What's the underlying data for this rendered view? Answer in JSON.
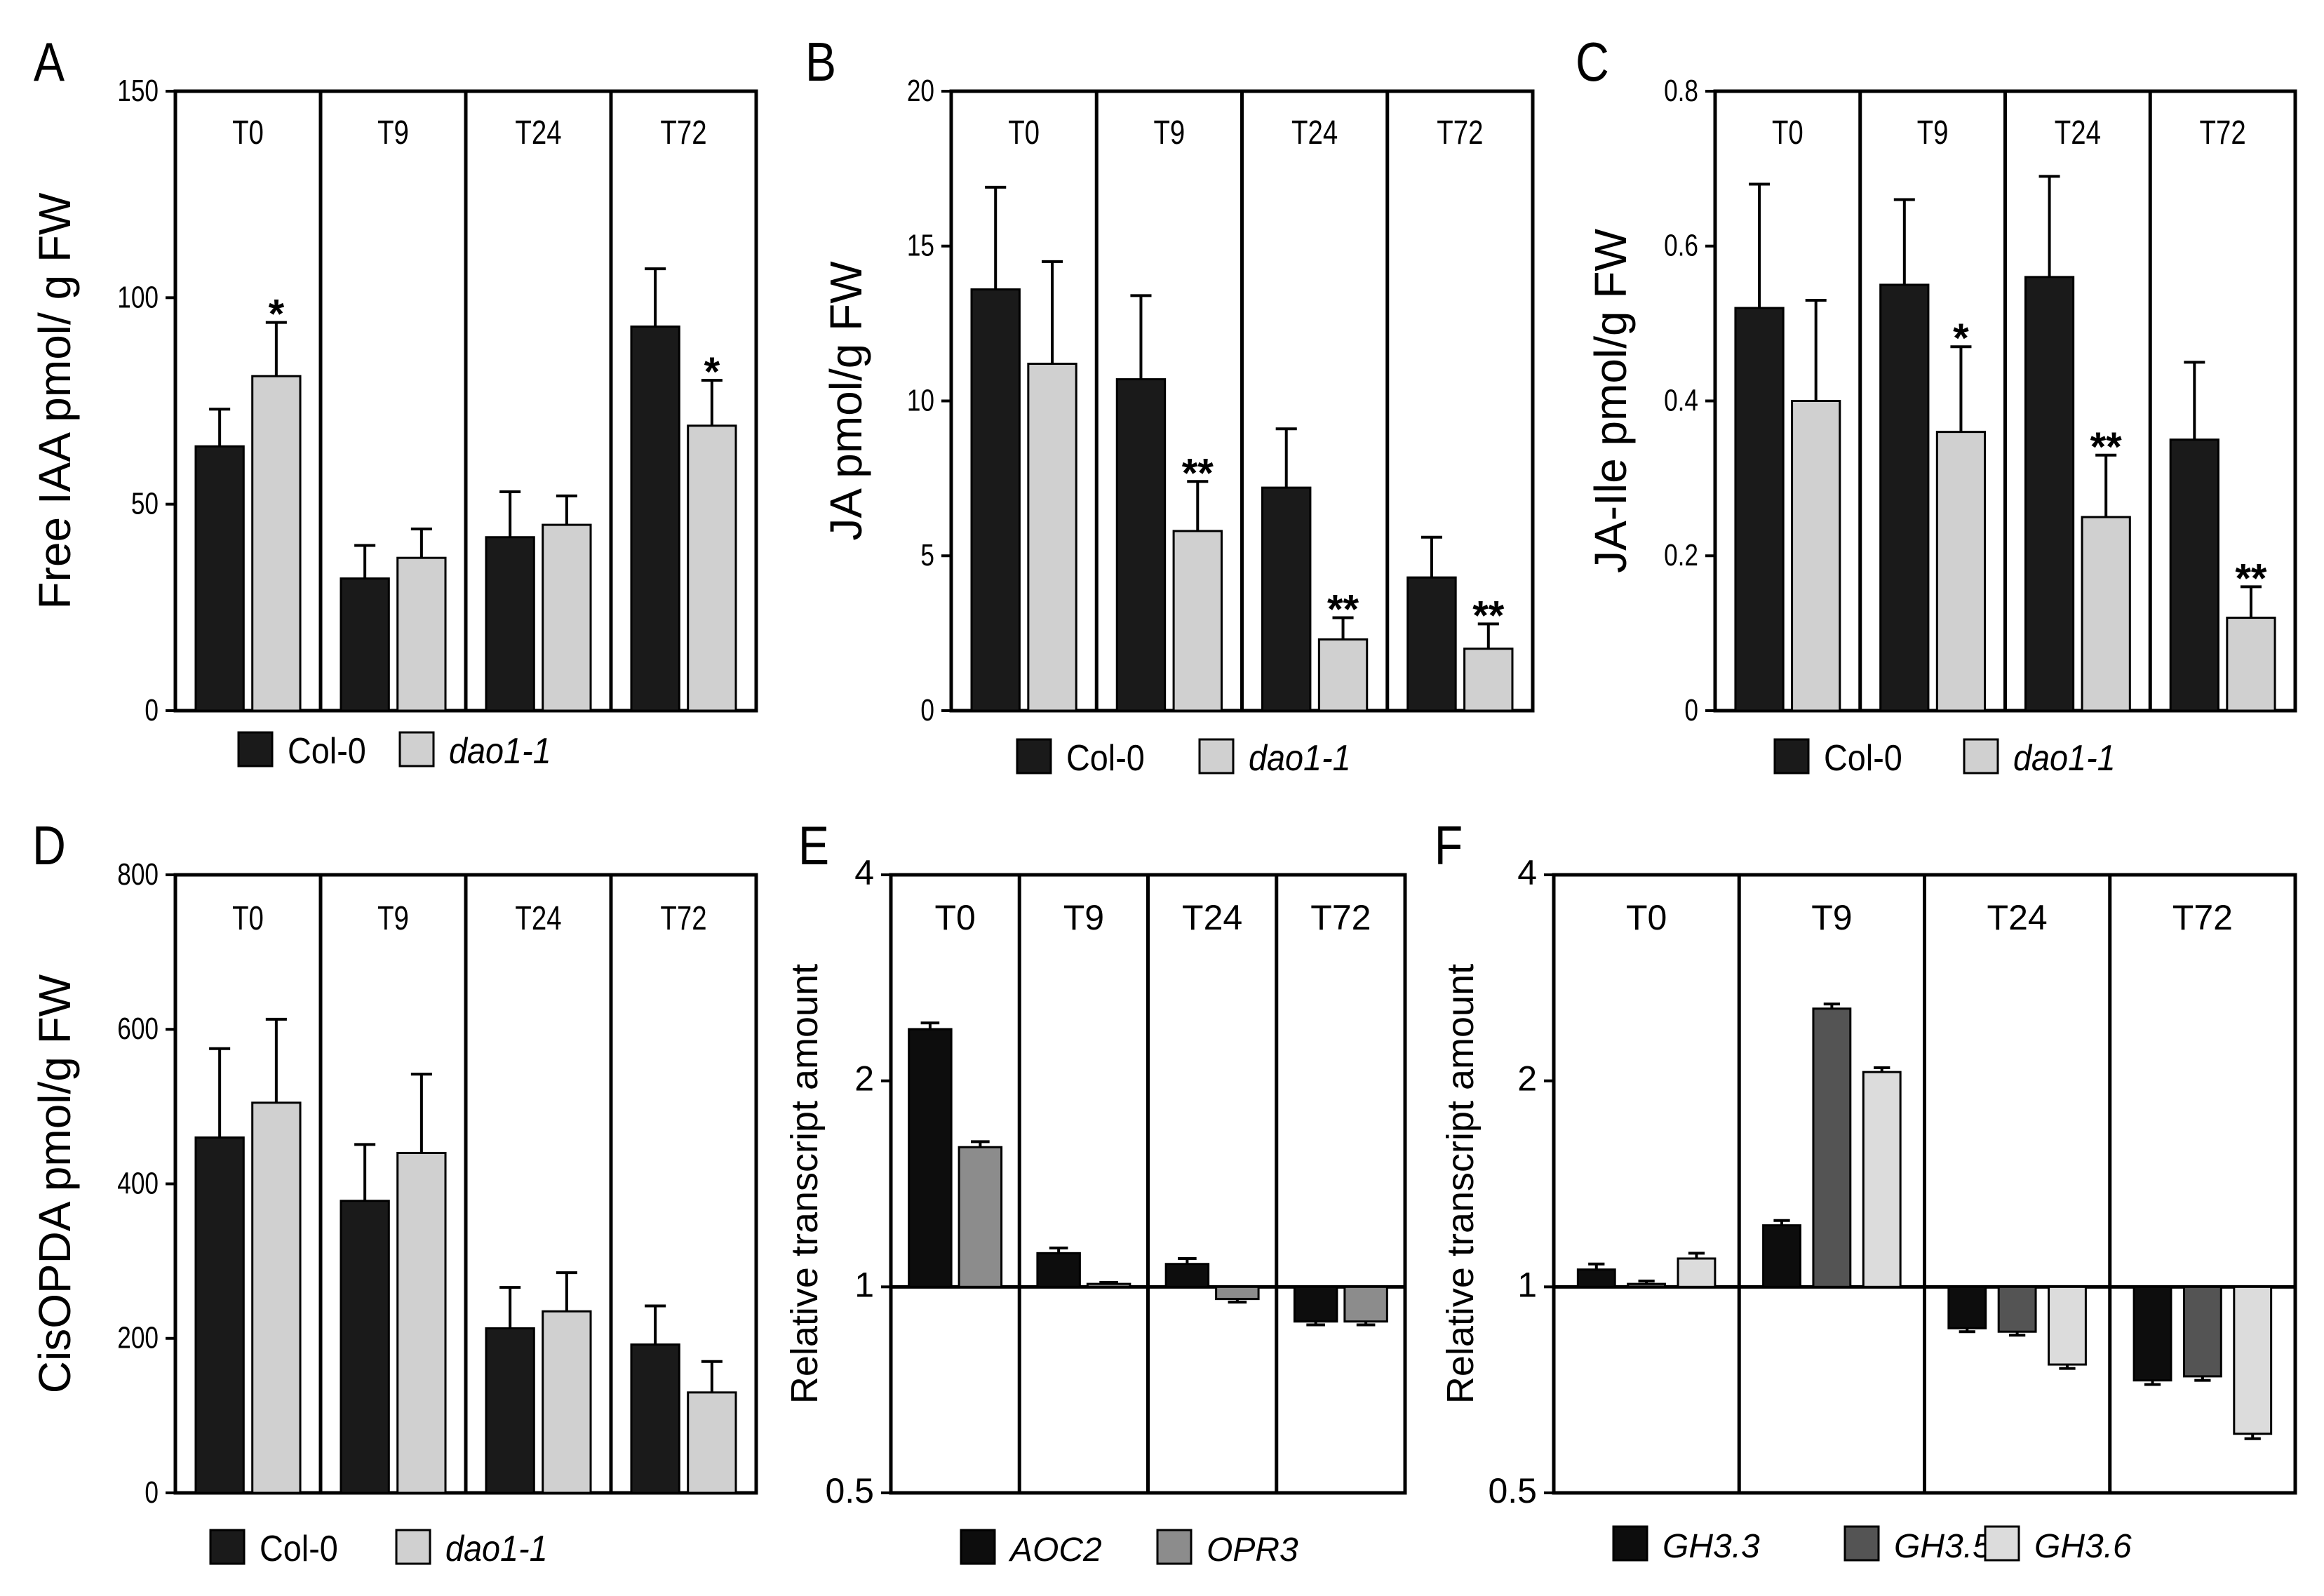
{
  "chart_data": [
    {
      "panel_label": "A",
      "type": "bar",
      "ylabel": "Free IAA pmol/ g FW",
      "ylim": [
        0,
        150
      ],
      "yticks": [
        "0",
        "50",
        "100",
        "150"
      ],
      "scale": "linear",
      "grid": false,
      "legend_position": "bottom",
      "groups": [
        "T0",
        "T9",
        "T24",
        "T72"
      ],
      "series": [
        {
          "name": "Col-0",
          "italic": false,
          "color": "#1a1a1a",
          "values": [
            64,
            32,
            42,
            93
          ],
          "errors": [
            9,
            8,
            11,
            14
          ]
        },
        {
          "name": "dao1-1",
          "italic": true,
          "color": "#d0d0d0",
          "values": [
            81,
            37,
            45,
            69
          ],
          "errors": [
            13,
            7,
            7,
            11
          ]
        }
      ],
      "annotations": [
        {
          "group": 0,
          "series": 1,
          "text": "*"
        },
        {
          "group": 3,
          "series": 1,
          "text": "*"
        }
      ]
    },
    {
      "panel_label": "B",
      "type": "bar",
      "ylabel": "JA pmol/g FW",
      "ylim": [
        0,
        20
      ],
      "yticks": [
        "0",
        "5",
        "10",
        "15",
        "20"
      ],
      "scale": "linear",
      "grid": false,
      "legend_position": "bottom",
      "groups": [
        "T0",
        "T9",
        "T24",
        "T72"
      ],
      "series": [
        {
          "name": "Col-0",
          "italic": false,
          "color": "#1a1a1a",
          "values": [
            13.6,
            10.7,
            7.2,
            4.3
          ],
          "errors": [
            3.3,
            2.7,
            1.9,
            1.3
          ]
        },
        {
          "name": "dao1-1",
          "italic": true,
          "color": "#d0d0d0",
          "values": [
            11.2,
            5.8,
            2.3,
            2.0
          ],
          "errors": [
            3.3,
            1.6,
            0.7,
            0.8
          ]
        }
      ],
      "annotations": [
        {
          "group": 1,
          "series": 1,
          "text": "**"
        },
        {
          "group": 2,
          "series": 1,
          "text": "**"
        },
        {
          "group": 3,
          "series": 1,
          "text": "**"
        }
      ]
    },
    {
      "panel_label": "C",
      "type": "bar",
      "ylabel": "JA-Ile pmol/g FW",
      "ylim": [
        0,
        0.8
      ],
      "yticks": [
        "0",
        "0.2",
        "0.4",
        "0.6",
        "0.8"
      ],
      "scale": "linear",
      "grid": false,
      "legend_position": "bottom",
      "groups": [
        "T0",
        "T9",
        "T24",
        "T72"
      ],
      "series": [
        {
          "name": "Col-0",
          "italic": false,
          "color": "#1a1a1a",
          "values": [
            0.52,
            0.55,
            0.56,
            0.35
          ],
          "errors": [
            0.16,
            0.11,
            0.13,
            0.1
          ]
        },
        {
          "name": "dao1-1",
          "italic": true,
          "color": "#d0d0d0",
          "values": [
            0.4,
            0.36,
            0.25,
            0.12
          ],
          "errors": [
            0.13,
            0.11,
            0.08,
            0.04
          ]
        }
      ],
      "annotations": [
        {
          "group": 1,
          "series": 1,
          "text": "*"
        },
        {
          "group": 2,
          "series": 1,
          "text": "**"
        },
        {
          "group": 3,
          "series": 1,
          "text": "**"
        }
      ]
    },
    {
      "panel_label": "D",
      "type": "bar",
      "ylabel": "CisOPDA pmol/g FW",
      "ylim": [
        0,
        800
      ],
      "yticks": [
        "0",
        "200",
        "400",
        "600",
        "800"
      ],
      "scale": "linear",
      "grid": false,
      "legend_position": "bottom",
      "groups": [
        "T0",
        "T9",
        "T24",
        "T72"
      ],
      "series": [
        {
          "name": "Col-0",
          "italic": false,
          "color": "#1a1a1a",
          "values": [
            460,
            378,
            213,
            192
          ],
          "errors": [
            115,
            73,
            53,
            50
          ]
        },
        {
          "name": "dao1-1",
          "italic": true,
          "color": "#d0d0d0",
          "values": [
            505,
            440,
            235,
            130
          ],
          "errors": [
            108,
            102,
            50,
            40
          ]
        }
      ],
      "annotations": []
    },
    {
      "panel_label": "E",
      "type": "bar",
      "ylabel": "Relative transcript amount",
      "ylim": [
        0.5,
        4
      ],
      "yticks": [
        "0.5",
        "1",
        "2",
        "4"
      ],
      "tick_values": [
        0.5,
        1,
        2,
        4
      ],
      "scale": "log",
      "baseline": 1,
      "grid": false,
      "legend_position": "bottom",
      "groups": [
        "T0",
        "T9",
        "T24",
        "T72"
      ],
      "series": [
        {
          "name": "AOC2",
          "italic": true,
          "color": "#0d0d0d",
          "values": [
            2.38,
            1.12,
            1.08,
            0.89
          ],
          "errors": [
            0.05,
            0.02,
            0.02,
            0.01
          ]
        },
        {
          "name": "OPR3",
          "italic": true,
          "color": "#8c8c8c",
          "values": [
            1.6,
            1.01,
            0.96,
            0.89
          ],
          "errors": [
            0.03,
            0.005,
            0.01,
            0.01
          ]
        }
      ],
      "annotations": []
    },
    {
      "panel_label": "F",
      "type": "bar",
      "ylabel": "Relative transcript amount",
      "ylim": [
        0.5,
        4
      ],
      "yticks": [
        "0.5",
        "1",
        "2",
        "4"
      ],
      "tick_values": [
        0.5,
        1,
        2,
        4
      ],
      "scale": "log",
      "baseline": 1,
      "grid": false,
      "legend_position": "bottom",
      "groups": [
        "T0",
        "T9",
        "T24",
        "T72"
      ],
      "series": [
        {
          "name": "GH3.3",
          "italic": true,
          "color": "#0d0d0d",
          "values": [
            1.06,
            1.23,
            0.87,
            0.73
          ],
          "errors": [
            0.02,
            0.02,
            0.01,
            0.01
          ]
        },
        {
          "name": "GH3.5",
          "italic": true,
          "color": "#545454",
          "values": [
            1.01,
            2.55,
            0.86,
            0.74
          ],
          "errors": [
            0.01,
            0.04,
            0.01,
            0.01
          ]
        },
        {
          "name": "GH3.6",
          "italic": true,
          "color": "#dcdcdc",
          "values": [
            1.1,
            2.06,
            0.77,
            0.61
          ],
          "errors": [
            0.02,
            0.03,
            0.01,
            0.01
          ]
        }
      ],
      "annotations": []
    }
  ]
}
